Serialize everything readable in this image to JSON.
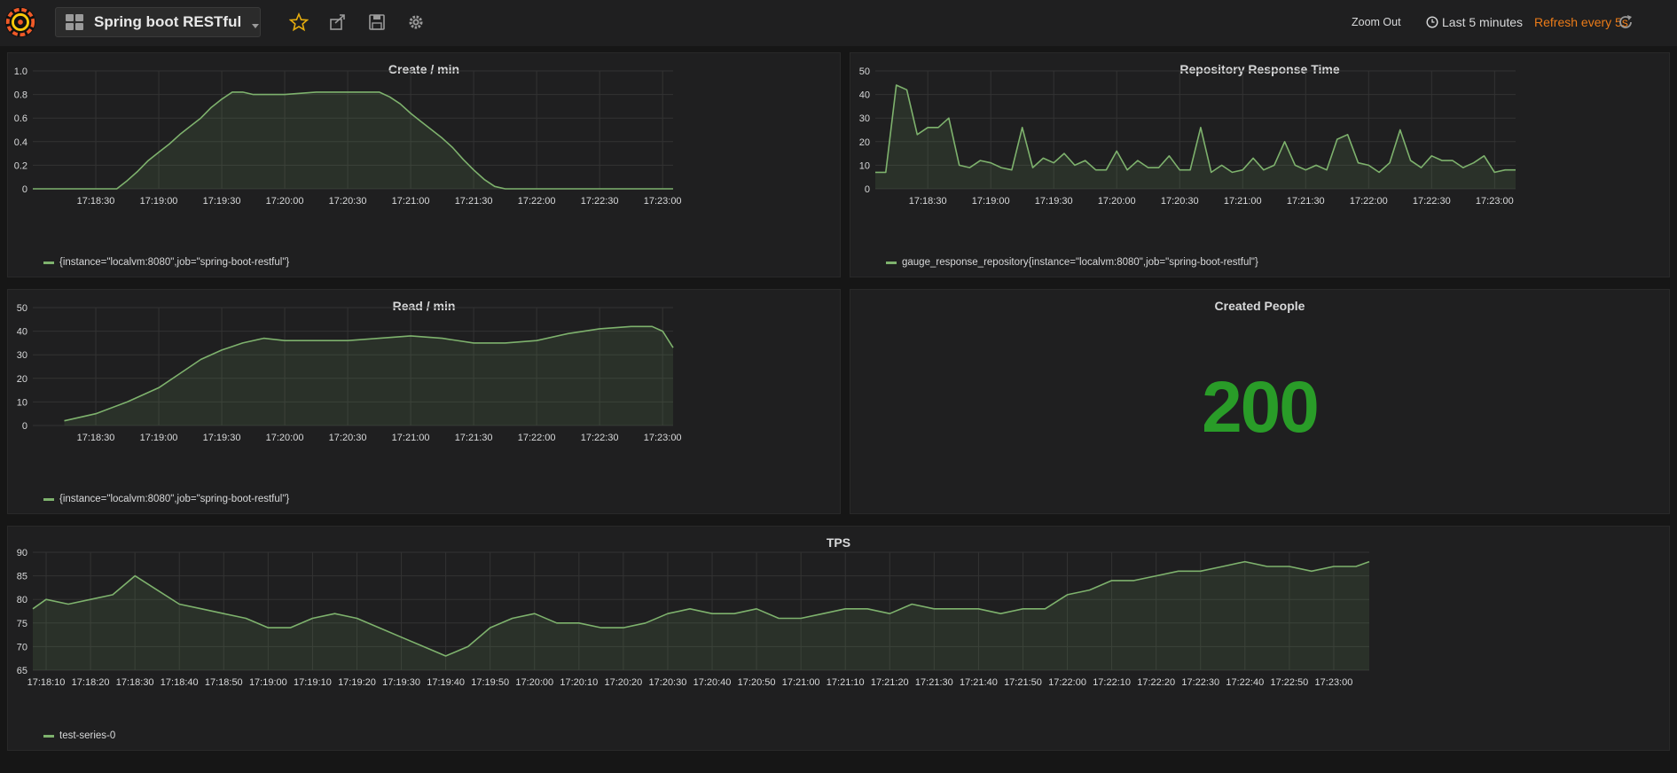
{
  "topbar": {
    "dashboard_title": "Spring boot RESTful",
    "zoom_out_label": "Zoom Out",
    "time_range_label": "Last 5 minutes",
    "refresh_label": "Refresh every 5s",
    "icons": [
      "star-icon",
      "share-icon",
      "save-icon",
      "settings-icon",
      "refresh-icon",
      "clock-icon"
    ],
    "colors": {
      "refresh_text": "#eb7b18",
      "star": "#e5ac0e"
    }
  },
  "colors": {
    "series": "#7eb26d",
    "singlestat": "#299c28"
  },
  "panels": {
    "create": {
      "title": "Create / min",
      "legend": "{instance=\"localvm:8080\",job=\"spring-boot-restful\"}"
    },
    "repo": {
      "title": "Repository Response Time",
      "legend": "gauge_response_repository{instance=\"localvm:8080\",job=\"spring-boot-restful\"}"
    },
    "read": {
      "title": "Read / min",
      "legend": "{instance=\"localvm:8080\",job=\"spring-boot-restful\"}"
    },
    "created_people": {
      "title": "Created People",
      "value": "200"
    },
    "tps": {
      "title": "TPS",
      "legend": "test-series-0"
    }
  },
  "chart_data": [
    {
      "id": "create",
      "type": "area",
      "title": "Create / min",
      "ylim": [
        0,
        1.0
      ],
      "yticks": [
        "1.0",
        "0.8",
        "0.6",
        "0.4",
        "0.2",
        "0"
      ],
      "xticks": [
        "17:18:30",
        "17:19:00",
        "17:19:30",
        "17:20:00",
        "17:20:30",
        "17:21:00",
        "17:21:30",
        "17:22:00",
        "17:22:30",
        "17:23:00"
      ],
      "xlim": [
        "17:18:00",
        "17:23:05"
      ],
      "series": [
        {
          "name": "{instance=\"localvm:8080\",job=\"spring-boot-restful\"}",
          "x": [
            "17:18:00",
            "17:18:40",
            "17:18:45",
            "17:18:50",
            "17:18:55",
            "17:19:00",
            "17:19:05",
            "17:19:10",
            "17:19:15",
            "17:19:20",
            "17:19:25",
            "17:19:30",
            "17:19:35",
            "17:19:40",
            "17:19:45",
            "17:20:00",
            "17:20:15",
            "17:20:25",
            "17:20:35",
            "17:20:45",
            "17:20:50",
            "17:20:55",
            "17:21:00",
            "17:21:05",
            "17:21:10",
            "17:21:15",
            "17:21:20",
            "17:21:25",
            "17:21:30",
            "17:21:35",
            "17:21:40",
            "17:21:45",
            "17:22:00",
            "17:23:05"
          ],
          "values": [
            0,
            0,
            0.07,
            0.15,
            0.24,
            0.31,
            0.38,
            0.46,
            0.53,
            0.6,
            0.69,
            0.76,
            0.82,
            0.82,
            0.8,
            0.8,
            0.82,
            0.82,
            0.82,
            0.82,
            0.78,
            0.72,
            0.64,
            0.57,
            0.5,
            0.43,
            0.35,
            0.25,
            0.16,
            0.08,
            0.02,
            0,
            0,
            0
          ]
        }
      ]
    },
    {
      "id": "repo",
      "type": "line",
      "title": "Repository Response Time",
      "ylim": [
        0,
        50
      ],
      "yticks": [
        "50",
        "40",
        "30",
        "20",
        "10",
        "0"
      ],
      "xticks": [
        "17:18:30",
        "17:19:00",
        "17:19:30",
        "17:20:00",
        "17:20:30",
        "17:21:00",
        "17:21:30",
        "17:22:00",
        "17:22:30",
        "17:23:00"
      ],
      "xlim": [
        "17:18:05",
        "17:23:10"
      ],
      "series": [
        {
          "name": "gauge_response_repository{instance=\"localvm:8080\",job=\"spring-boot-restful\"}",
          "x": [
            "17:18:05",
            "17:18:10",
            "17:18:15",
            "17:18:20",
            "17:18:25",
            "17:18:30",
            "17:18:35",
            "17:18:40",
            "17:18:45",
            "17:18:50",
            "17:18:55",
            "17:19:00",
            "17:19:05",
            "17:19:10",
            "17:19:15",
            "17:19:20",
            "17:19:25",
            "17:19:30",
            "17:19:35",
            "17:19:40",
            "17:19:45",
            "17:19:50",
            "17:19:55",
            "17:20:00",
            "17:20:05",
            "17:20:10",
            "17:20:15",
            "17:20:20",
            "17:20:25",
            "17:20:30",
            "17:20:35",
            "17:20:40",
            "17:20:45",
            "17:20:50",
            "17:20:55",
            "17:21:00",
            "17:21:05",
            "17:21:10",
            "17:21:15",
            "17:21:20",
            "17:21:25",
            "17:21:30",
            "17:21:35",
            "17:21:40",
            "17:21:45",
            "17:21:50",
            "17:21:55",
            "17:22:00",
            "17:22:05",
            "17:22:10",
            "17:22:15",
            "17:22:20",
            "17:22:25",
            "17:22:30",
            "17:22:35",
            "17:22:40",
            "17:22:45",
            "17:22:50",
            "17:22:55",
            "17:23:00",
            "17:23:05",
            "17:23:10"
          ],
          "values": [
            7,
            7,
            44,
            42,
            23,
            26,
            26,
            30,
            10,
            9,
            12,
            11,
            9,
            8,
            26,
            9,
            13,
            11,
            15,
            10,
            12,
            8,
            8,
            16,
            8,
            12,
            9,
            9,
            14,
            8,
            8,
            26,
            7,
            10,
            7,
            8,
            13,
            8,
            10,
            20,
            10,
            8,
            10,
            8,
            21,
            23,
            11,
            10,
            7,
            11,
            25,
            12,
            9,
            14,
            12,
            12,
            9,
            11,
            14,
            7,
            8,
            8
          ]
        }
      ]
    },
    {
      "id": "read",
      "type": "area",
      "title": "Read / min",
      "ylim": [
        0,
        50
      ],
      "yticks": [
        "50",
        "40",
        "30",
        "20",
        "10",
        "0"
      ],
      "xticks": [
        "17:18:30",
        "17:19:00",
        "17:19:30",
        "17:20:00",
        "17:20:30",
        "17:21:00",
        "17:21:30",
        "17:22:00",
        "17:22:30",
        "17:23:00"
      ],
      "xlim": [
        "17:18:00",
        "17:23:05"
      ],
      "series": [
        {
          "name": "{instance=\"localvm:8080\",job=\"spring-boot-restful\"}",
          "x": [
            "17:18:15",
            "17:18:30",
            "17:18:45",
            "17:19:00",
            "17:19:10",
            "17:19:20",
            "17:19:30",
            "17:19:40",
            "17:19:50",
            "17:20:00",
            "17:20:15",
            "17:20:30",
            "17:20:45",
            "17:21:00",
            "17:21:15",
            "17:21:30",
            "17:21:45",
            "17:22:00",
            "17:22:15",
            "17:22:30",
            "17:22:45",
            "17:22:55",
            "17:23:00",
            "17:23:05"
          ],
          "values": [
            2,
            5,
            10,
            16,
            22,
            28,
            32,
            35,
            37,
            36,
            36,
            36,
            37,
            38,
            37,
            35,
            35,
            36,
            39,
            41,
            42,
            42,
            40,
            33
          ]
        }
      ]
    },
    {
      "id": "tps",
      "type": "area",
      "title": "TPS",
      "ylim": [
        65,
        90
      ],
      "yticks": [
        "90",
        "85",
        "80",
        "75",
        "70",
        "65"
      ],
      "xticks": [
        "17:18:10",
        "17:18:20",
        "17:18:30",
        "17:18:40",
        "17:18:50",
        "17:19:00",
        "17:19:10",
        "17:19:20",
        "17:19:30",
        "17:19:40",
        "17:19:50",
        "17:20:00",
        "17:20:10",
        "17:20:20",
        "17:20:30",
        "17:20:40",
        "17:20:50",
        "17:21:00",
        "17:21:10",
        "17:21:20",
        "17:21:30",
        "17:21:40",
        "17:21:50",
        "17:22:00",
        "17:22:10",
        "17:22:20",
        "17:22:30",
        "17:22:40",
        "17:22:50",
        "17:23:00"
      ],
      "xlim": [
        "17:18:07",
        "17:23:08"
      ],
      "series": [
        {
          "name": "test-series-0",
          "x": [
            "17:18:07",
            "17:18:10",
            "17:18:15",
            "17:18:20",
            "17:18:25",
            "17:18:30",
            "17:18:35",
            "17:18:40",
            "17:18:45",
            "17:18:50",
            "17:18:55",
            "17:19:00",
            "17:19:05",
            "17:19:10",
            "17:19:15",
            "17:19:20",
            "17:19:25",
            "17:19:30",
            "17:19:35",
            "17:19:40",
            "17:19:45",
            "17:19:50",
            "17:19:55",
            "17:20:00",
            "17:20:05",
            "17:20:10",
            "17:20:15",
            "17:20:20",
            "17:20:25",
            "17:20:30",
            "17:20:35",
            "17:20:40",
            "17:20:45",
            "17:20:50",
            "17:20:55",
            "17:21:00",
            "17:21:05",
            "17:21:10",
            "17:21:15",
            "17:21:20",
            "17:21:25",
            "17:21:30",
            "17:21:35",
            "17:21:40",
            "17:21:45",
            "17:21:50",
            "17:21:55",
            "17:22:00",
            "17:22:05",
            "17:22:10",
            "17:22:15",
            "17:22:20",
            "17:22:25",
            "17:22:30",
            "17:22:35",
            "17:22:40",
            "17:22:45",
            "17:22:50",
            "17:22:55",
            "17:23:00",
            "17:23:05",
            "17:23:08"
          ],
          "values": [
            78,
            80,
            79,
            80,
            81,
            85,
            82,
            79,
            78,
            77,
            76,
            74,
            74,
            76,
            77,
            76,
            74,
            72,
            70,
            68,
            70,
            74,
            76,
            77,
            75,
            75,
            74,
            74,
            75,
            77,
            78,
            77,
            77,
            78,
            76,
            76,
            77,
            78,
            78,
            77,
            79,
            78,
            78,
            78,
            77,
            78,
            78,
            81,
            82,
            84,
            84,
            85,
            86,
            86,
            87,
            88,
            87,
            87,
            86,
            87,
            87,
            88
          ]
        }
      ]
    }
  ]
}
